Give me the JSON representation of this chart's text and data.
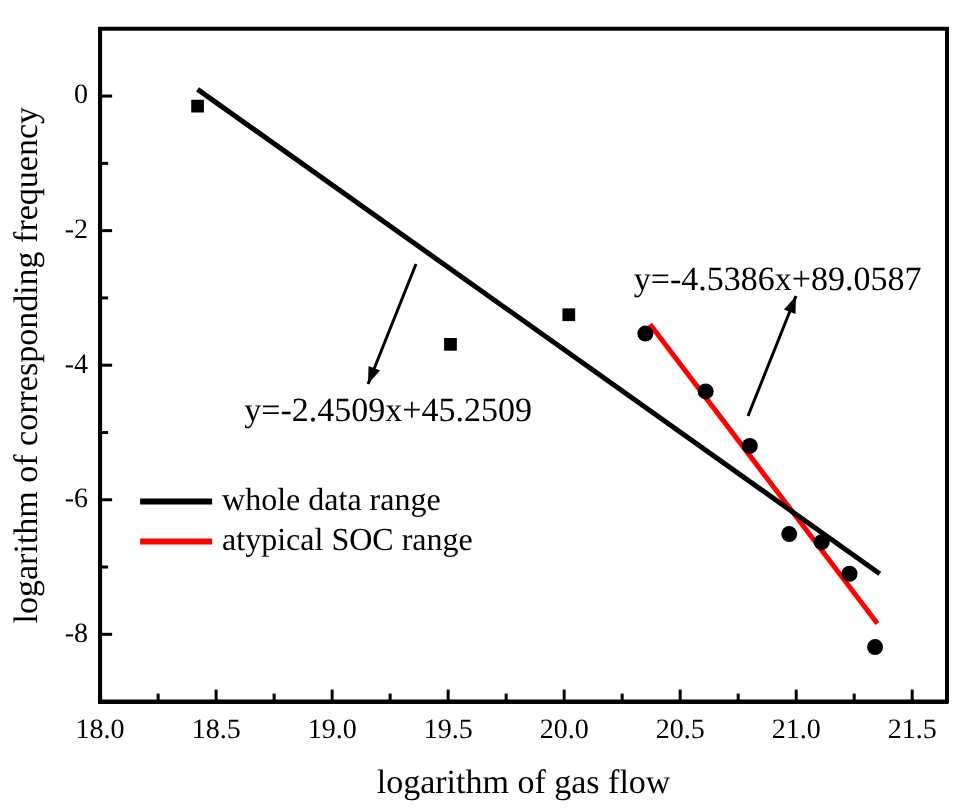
{
  "chart_data": {
    "type": "scatter",
    "xlabel": "logarithm of gas flow",
    "ylabel": "logarithm of corresponding frequency",
    "xlim": [
      18,
      21.65
    ],
    "ylim": [
      -9,
      1
    ],
    "xticks": [
      {
        "value": 18,
        "label": "18.0"
      },
      {
        "value": 18.25,
        "label": null
      },
      {
        "value": 18.5,
        "label": "18.5"
      },
      {
        "value": 18.75,
        "label": null
      },
      {
        "value": 19,
        "label": "19.0"
      },
      {
        "value": 19.25,
        "label": null
      },
      {
        "value": 19.5,
        "label": "19.5"
      },
      {
        "value": 19.75,
        "label": null
      },
      {
        "value": 20,
        "label": "20.0"
      },
      {
        "value": 20.25,
        "label": null
      },
      {
        "value": 20.5,
        "label": "20.5"
      },
      {
        "value": 20.75,
        "label": null
      },
      {
        "value": 21,
        "label": "21.0"
      },
      {
        "value": 21.25,
        "label": null
      },
      {
        "value": 21.5,
        "label": "21.5"
      }
    ],
    "yticks": [
      -8,
      {
        "value": -7,
        "label": null
      },
      -6,
      {
        "value": -5,
        "label": null
      },
      -4,
      {
        "value": -3,
        "label": null
      },
      -2,
      {
        "value": -1,
        "label": null
      },
      0
    ],
    "series": [
      {
        "type": "scatter",
        "marker": "square",
        "color": "#000000",
        "x": [
          18.42,
          19.51,
          20.02
        ],
        "values": [
          -0.15,
          -3.69,
          -3.25
        ]
      },
      {
        "type": "scatter",
        "marker": "circle",
        "color": "#000000",
        "x": [
          20.35,
          20.61,
          20.8,
          20.97,
          21.11,
          21.23,
          21.34
        ],
        "values": [
          -3.53,
          -4.39,
          -5.2,
          -6.51,
          -6.63,
          -7.1,
          -8.19
        ]
      },
      {
        "type": "line",
        "name": "whole data range",
        "color": "#000000",
        "line_style": "solid",
        "marker": "none",
        "x": [
          18.42,
          21.36
        ],
        "values": [
          0.1,
          -7.1
        ]
      },
      {
        "type": "line",
        "name": "atypical SOC range",
        "color": "#ff0000",
        "line_style": "solid",
        "marker": "none",
        "x": [
          20.37,
          21.35
        ],
        "values": [
          -3.39,
          -7.84
        ]
      }
    ],
    "annotations": [
      "y=-2.4509x+45.2509",
      "y=-4.5386x+89.0587"
    ],
    "legend": "bottom left",
    "grid": false
  }
}
